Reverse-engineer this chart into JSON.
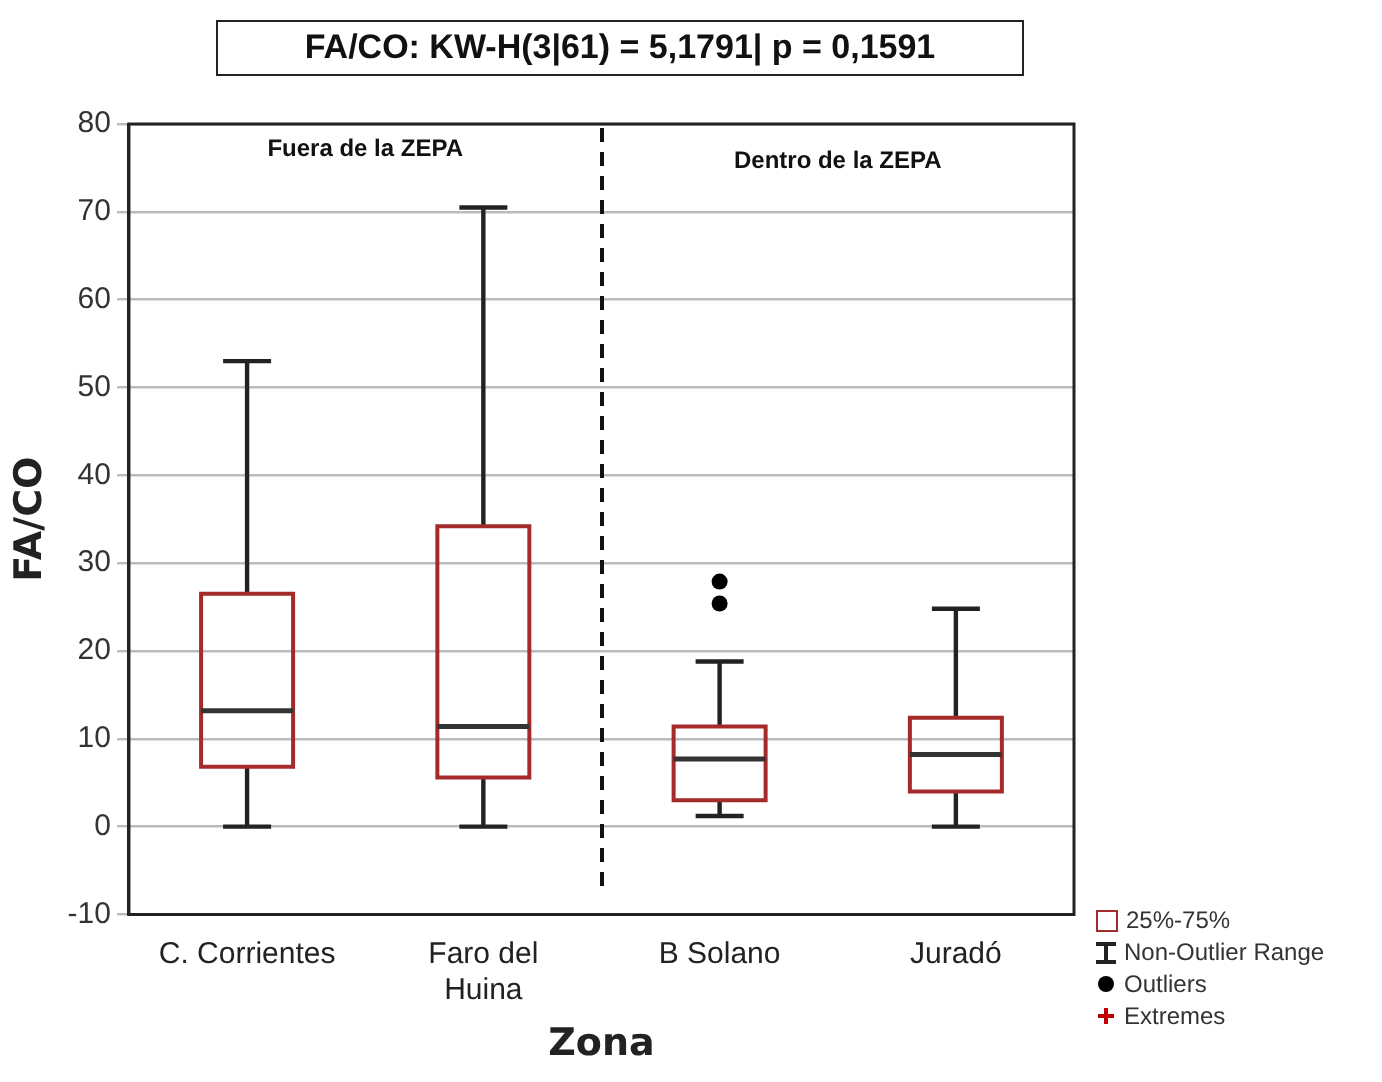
{
  "chart_data": {
    "type": "box",
    "title": "FA/CO:  KW-H(3|61) = 5,1791| p = 0,1591",
    "xlabel": "Zona",
    "ylabel": "FA/CO",
    "categories": [
      "C. Corrientes",
      "Faro del Huina",
      "B Solano",
      "Juradó"
    ],
    "series": [
      {
        "color": "#a52a2a",
        "boxes": [
          {
            "low": 0,
            "q1": 6.8,
            "median": 13.2,
            "q3": 26.5,
            "high": 53
          },
          {
            "low": 0,
            "q1": 5.6,
            "median": 11.4,
            "q3": 34.2,
            "high": 70.5
          },
          {
            "low": 1.2,
            "q1": 3,
            "median": 7.7,
            "q3": 11.4,
            "high": 18.8,
            "outliers": [
              25.4,
              27.9
            ]
          },
          {
            "low": 0,
            "q1": 4,
            "median": 8.2,
            "q3": 12.4,
            "high": 24.8
          }
        ]
      }
    ],
    "ylim": [
      -10,
      80
    ],
    "yticks": [
      -10,
      0,
      10,
      20,
      30,
      40,
      50,
      60,
      70,
      80
    ],
    "grid": "y",
    "annotations": [
      "Fuera de la ZEPA",
      "Dentro de la ZEPA",
      "25%-75%",
      "Non-Outlier Range",
      "Outliers",
      "Extremes"
    ]
  }
}
